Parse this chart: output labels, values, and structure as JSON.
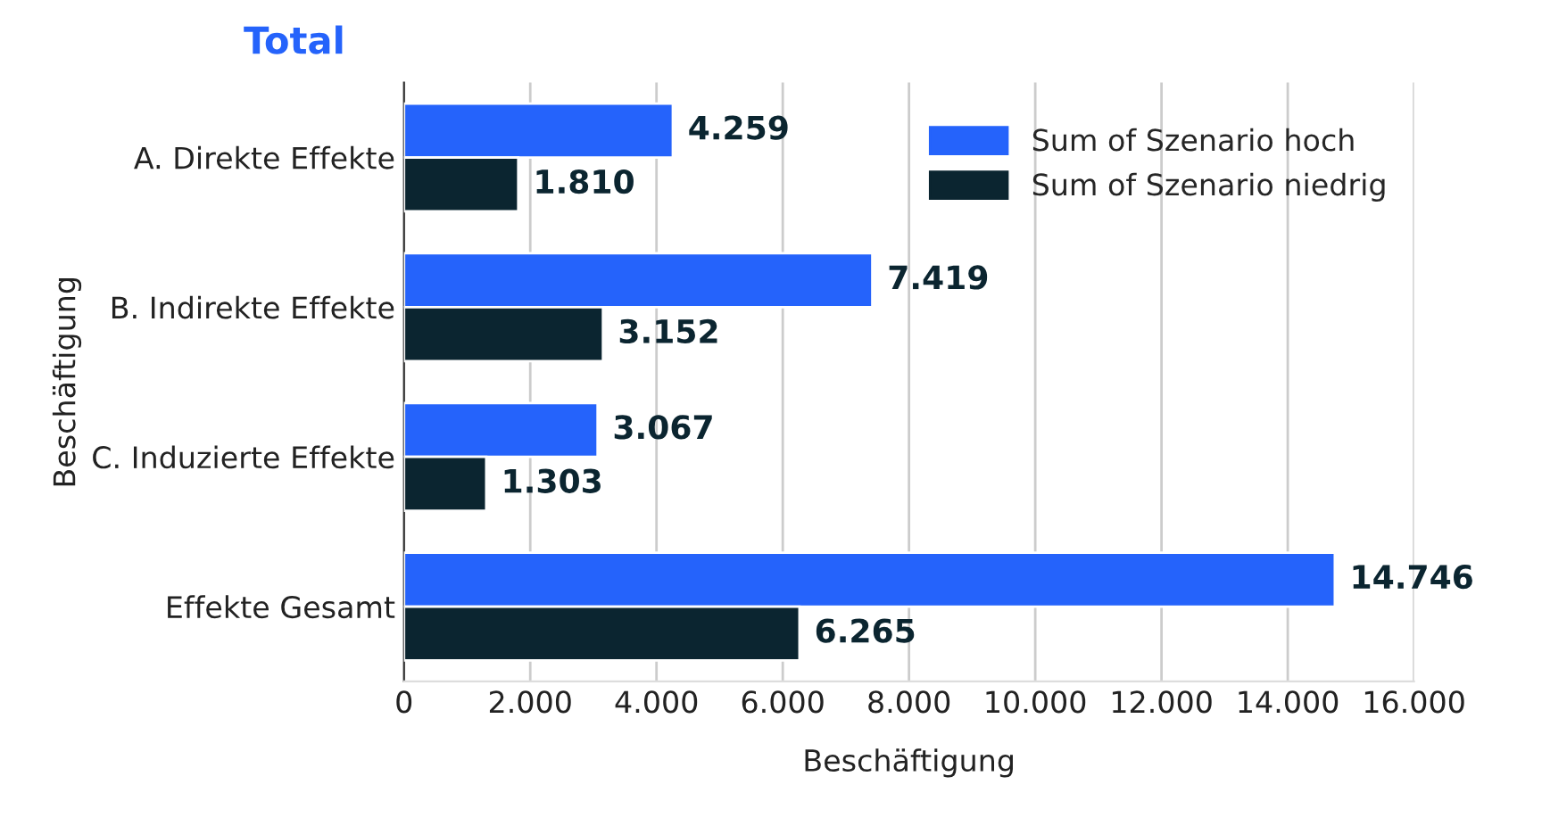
{
  "chart_data": {
    "type": "bar",
    "orientation": "horizontal",
    "title": "Total",
    "xlabel": "Beschäftigung",
    "ylabel": "Beschäftigung",
    "categories": [
      "A. Direkte Effekte",
      "B. Indirekte Effekte",
      "C. Induzierte Effekte",
      "Effekte Gesamt"
    ],
    "series": [
      {
        "name": "Sum of Szenario hoch",
        "color": "#2563fb",
        "values": [
          4259,
          7419,
          3067,
          14746
        ],
        "value_labels": [
          "4.259",
          "7.419",
          "3.067",
          "14.746"
        ]
      },
      {
        "name": "Sum of Szenario niedrig",
        "color": "#0b2530",
        "values": [
          1810,
          3152,
          1303,
          6265
        ],
        "value_labels": [
          "1.810",
          "3.152",
          "1.303",
          "6.265"
        ]
      }
    ],
    "xlim": [
      0,
      16000
    ],
    "xticks": [
      0,
      {
        "value": 2000,
        "label": "2.000"
      },
      {
        "value": 4000,
        "label": "4.000"
      },
      {
        "value": 6000,
        "label": "6.000"
      },
      {
        "value": 8000,
        "label": "8.000"
      },
      {
        "value": 10000,
        "label": "10.000"
      },
      {
        "value": 12000,
        "label": "12.000"
      },
      {
        "value": 14000,
        "label": "14.000"
      },
      {
        "value": 16000,
        "label": "16.000"
      }
    ],
    "grid": "x",
    "legend": "top right"
  }
}
